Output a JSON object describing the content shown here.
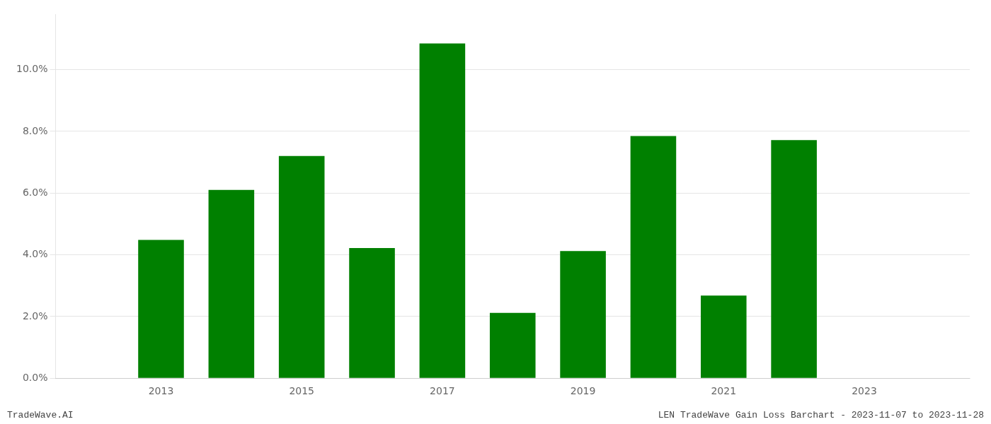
{
  "chart_data": {
    "type": "bar",
    "x": [
      2013,
      2014,
      2015,
      2016,
      2017,
      2018,
      2019,
      2020,
      2021,
      2022,
      2023
    ],
    "values": [
      0.0448,
      0.061,
      0.072,
      0.0422,
      0.1085,
      0.0212,
      0.0412,
      0.0785,
      0.0268,
      0.0772,
      null
    ],
    "color": "#008000",
    "xlim": [
      2011.5,
      2024.5
    ],
    "xticks": [
      2013,
      2015,
      2017,
      2019,
      2021,
      2023
    ],
    "ylim": [
      0,
      0.118
    ],
    "yticks": [
      {
        "value": 0,
        "label": "0.0%"
      },
      {
        "value": 0.02,
        "label": "2.0%"
      },
      {
        "value": 0.04,
        "label": "4.0%"
      },
      {
        "value": 0.06,
        "label": "6.0%"
      },
      {
        "value": 0.08,
        "label": "8.0%"
      },
      {
        "value": 0.1,
        "label": "10.0%"
      }
    ],
    "grid": true,
    "annotations": [
      "TradeWave.AI",
      "LEN TradeWave Gain Loss Barchart - 2023-11-07 to 2023-11-28"
    ]
  }
}
